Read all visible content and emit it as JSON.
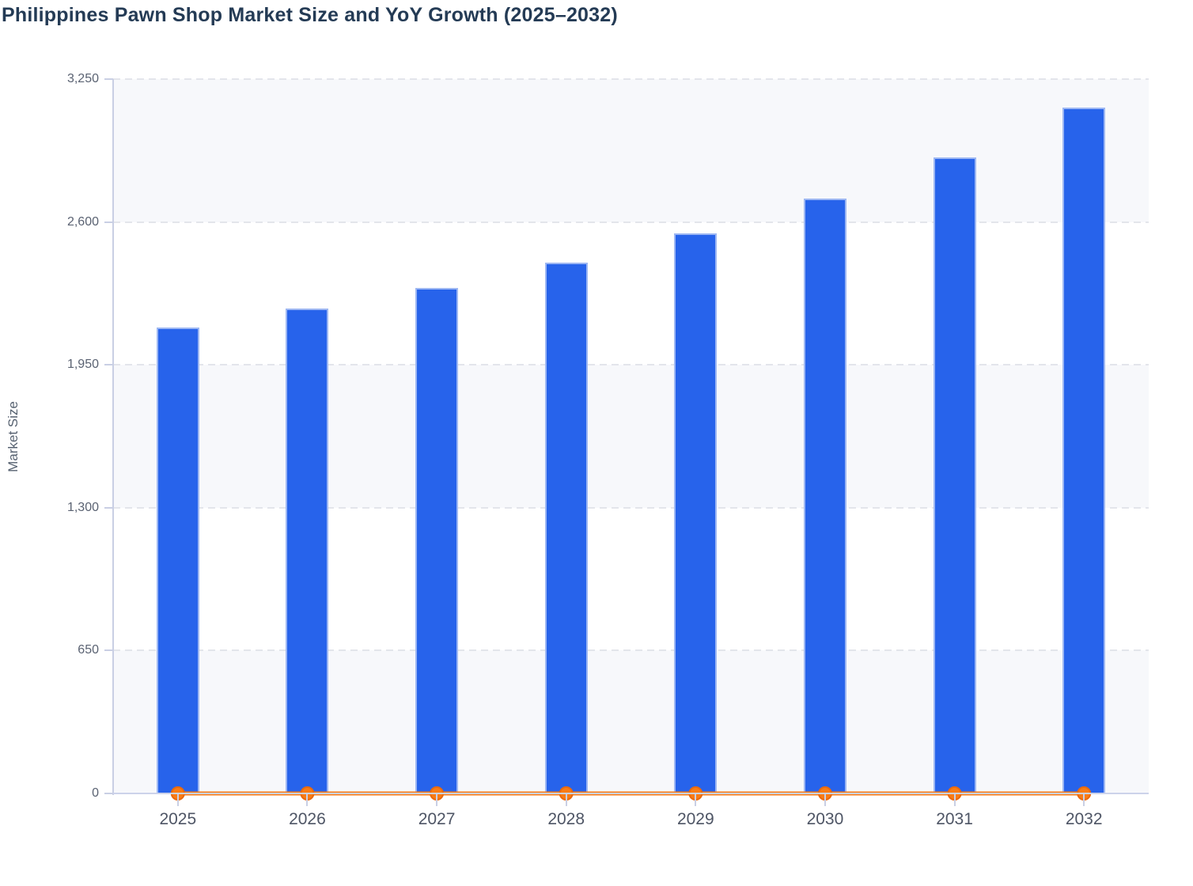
{
  "chart_data": {
    "type": "bar",
    "title": "Philippines Pawn Shop Market Size and YoY Growth (2025–2032)",
    "ylabel": "Market Size",
    "xlabel": "",
    "categories": [
      "2025",
      "2026",
      "2027",
      "2028",
      "2029",
      "2030",
      "2031",
      "2032"
    ],
    "series": [
      {
        "name": "Market Size",
        "type": "bar",
        "color": "#2763eb",
        "stroke": "#9db7f3",
        "values": [
          2120,
          2205,
          2300,
          2415,
          2550,
          2705,
          2895,
          3120
        ]
      },
      {
        "name": "YoY Growth",
        "type": "line",
        "color": "#f97c16",
        "marker_stroke": "#ea690e",
        "values": [
          0,
          0,
          0,
          0,
          0,
          0,
          0,
          0
        ],
        "note": "line renders flat on the zero baseline with a circular marker at each year"
      }
    ],
    "ylim": [
      0,
      3250
    ],
    "yticks": [
      0,
      650,
      1300,
      1950,
      2600,
      3250
    ],
    "ytick_labels": [
      "0",
      "650",
      "1,300",
      "1,950",
      "2,600",
      "3,250"
    ],
    "grid": "horizontal-dashed",
    "band_fill": "#f7f8fb",
    "legend": "none"
  },
  "colors": {
    "title": "#243b55",
    "axis_text": "#5a6272",
    "x_axis_text": "#4e5565",
    "gridline": "#e3e5eb",
    "spine": "#c9cfe4",
    "background": "#ffffff"
  }
}
